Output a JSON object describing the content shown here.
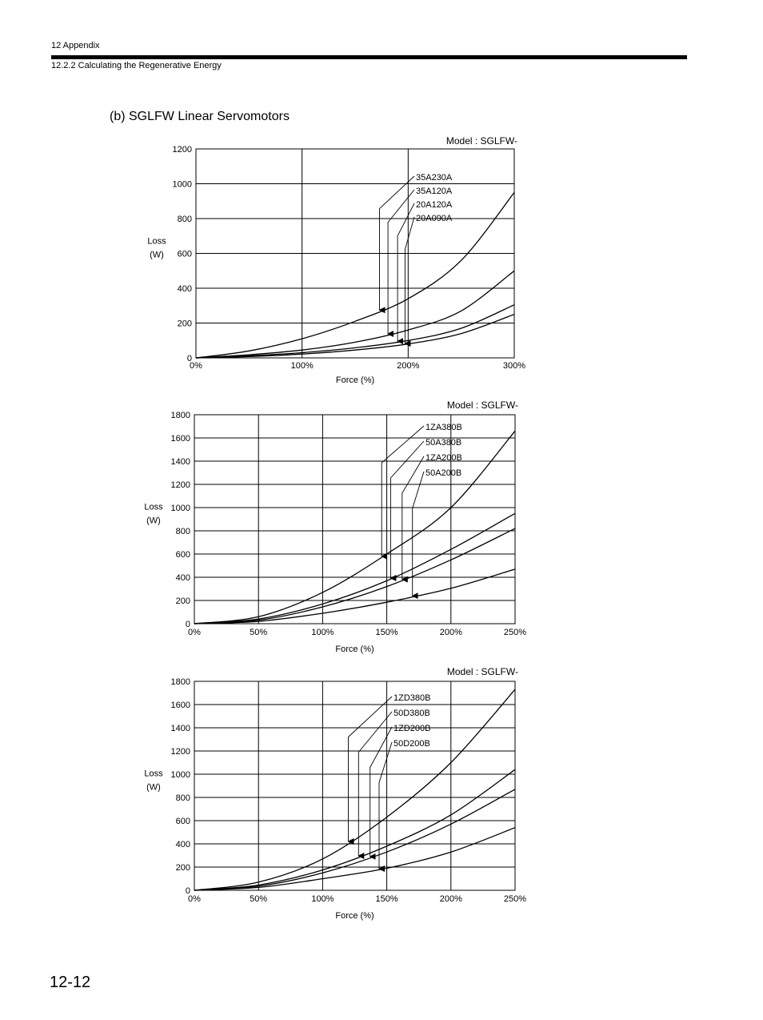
{
  "header": {
    "chapter": "12  Appendix",
    "section": "12.2.2  Calculating the Regenerative Energy"
  },
  "section_title": "(b) SGLFW Linear Servomotors",
  "page_number": "12-12",
  "chart_data": [
    {
      "type": "line",
      "model_label": "Model : SGLFW-",
      "xlabel": "Force (%)",
      "ylabel": [
        "Loss",
        "(W)"
      ],
      "xlim": [
        0,
        300
      ],
      "ylim": [
        0,
        1200
      ],
      "x_ticks": [
        "0%",
        "100%",
        "200%",
        "300%"
      ],
      "y_ticks": [
        "0",
        "200",
        "400",
        "600",
        "800",
        "1000",
        "1200"
      ],
      "grid": true,
      "series": [
        {
          "name": "35A230A",
          "x": [
            0,
            50,
            100,
            150,
            200,
            250,
            300
          ],
          "values": [
            0,
            40,
            110,
            210,
            340,
            560,
            950
          ],
          "arrow_x": 173
        },
        {
          "name": "35A120A",
          "x": [
            0,
            50,
            100,
            150,
            200,
            250,
            300
          ],
          "values": [
            0,
            18,
            45,
            90,
            160,
            270,
            500
          ],
          "arrow_x": 181
        },
        {
          "name": "20A120A",
          "x": [
            0,
            50,
            100,
            150,
            200,
            250,
            300
          ],
          "values": [
            0,
            12,
            30,
            58,
            100,
            170,
            305
          ],
          "arrow_x": 190
        },
        {
          "name": "20A090A",
          "x": [
            0,
            50,
            100,
            150,
            200,
            250,
            300
          ],
          "values": [
            0,
            8,
            22,
            45,
            80,
            140,
            250
          ],
          "arrow_x": 197
        }
      ]
    },
    {
      "type": "line",
      "model_label": "Model : SGLFW-",
      "xlabel": "Force (%)",
      "ylabel": [
        "Loss",
        "(W)"
      ],
      "xlim": [
        0,
        250
      ],
      "ylim": [
        0,
        1800
      ],
      "x_ticks": [
        "0%",
        "50%",
        "100%",
        "150%",
        "200%",
        "250%"
      ],
      "y_ticks": [
        "0",
        "200",
        "400",
        "600",
        "800",
        "1000",
        "1200",
        "1400",
        "1600",
        "1800"
      ],
      "grid": true,
      "series": [
        {
          "name": "1ZA380B",
          "x": [
            0,
            50,
            100,
            150,
            200,
            250
          ],
          "values": [
            0,
            60,
            270,
            600,
            1000,
            1660
          ],
          "arrow_x": 146
        },
        {
          "name": "50A380B",
          "x": [
            0,
            50,
            100,
            150,
            200,
            250
          ],
          "values": [
            0,
            40,
            170,
            370,
            640,
            950
          ],
          "arrow_x": 153
        },
        {
          "name": "1ZA200B",
          "x": [
            0,
            50,
            100,
            150,
            200,
            250
          ],
          "values": [
            0,
            30,
            145,
            320,
            550,
            820
          ],
          "arrow_x": 162
        },
        {
          "name": "50A200B",
          "x": [
            0,
            50,
            100,
            150,
            200,
            250
          ],
          "values": [
            0,
            20,
            90,
            185,
            305,
            470
          ],
          "arrow_x": 170
        }
      ]
    },
    {
      "type": "line",
      "model_label": "Model : SGLFW-",
      "xlabel": "Force (%)",
      "ylabel": [
        "Loss",
        "(W)"
      ],
      "xlim": [
        0,
        250
      ],
      "ylim": [
        0,
        1800
      ],
      "x_ticks": [
        "0%",
        "50%",
        "100%",
        "150%",
        "200%",
        "250%"
      ],
      "y_ticks": [
        "0",
        "200",
        "400",
        "600",
        "800",
        "1000",
        "1200",
        "1400",
        "1600",
        "1800"
      ],
      "grid": true,
      "series": [
        {
          "name": "1ZD380B",
          "x": [
            0,
            50,
            100,
            150,
            200,
            250
          ],
          "values": [
            0,
            70,
            270,
            630,
            1100,
            1730
          ],
          "arrow_x": 120
        },
        {
          "name": "50D380B",
          "x": [
            0,
            50,
            100,
            150,
            200,
            250
          ],
          "values": [
            0,
            45,
            175,
            380,
            650,
            1040
          ],
          "arrow_x": 128
        },
        {
          "name": "1ZD200B",
          "x": [
            0,
            50,
            100,
            150,
            200,
            250
          ],
          "values": [
            0,
            35,
            150,
            330,
            570,
            870
          ],
          "arrow_x": 137
        },
        {
          "name": "50D200B",
          "x": [
            0,
            50,
            100,
            150,
            200,
            250
          ],
          "values": [
            0,
            25,
            100,
            190,
            330,
            540
          ],
          "arrow_x": 144
        }
      ]
    }
  ]
}
